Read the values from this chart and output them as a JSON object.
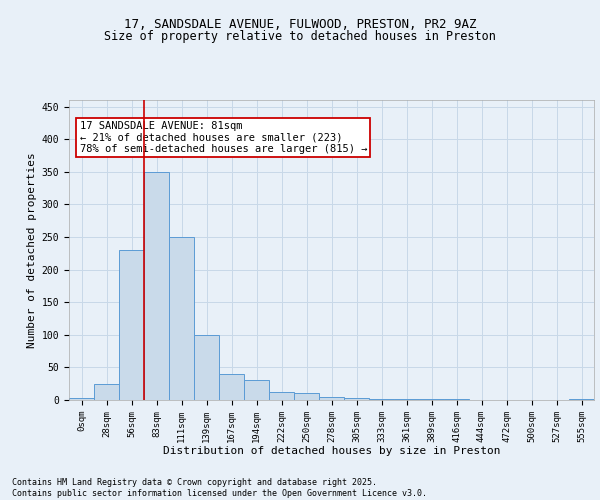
{
  "title_line1": "17, SANDSDALE AVENUE, FULWOOD, PRESTON, PR2 9AZ",
  "title_line2": "Size of property relative to detached houses in Preston",
  "xlabel": "Distribution of detached houses by size in Preston",
  "ylabel": "Number of detached properties",
  "bar_labels": [
    "0sqm",
    "28sqm",
    "56sqm",
    "83sqm",
    "111sqm",
    "139sqm",
    "167sqm",
    "194sqm",
    "222sqm",
    "250sqm",
    "278sqm",
    "305sqm",
    "333sqm",
    "361sqm",
    "389sqm",
    "416sqm",
    "444sqm",
    "472sqm",
    "500sqm",
    "527sqm",
    "555sqm"
  ],
  "bar_values": [
    3,
    25,
    230,
    350,
    250,
    100,
    40,
    30,
    12,
    10,
    5,
    3,
    2,
    1,
    1,
    1,
    0,
    0,
    0,
    0,
    2
  ],
  "bar_color": "#c9daea",
  "bar_edge_color": "#5b9bd5",
  "vline_color": "#cc0000",
  "vline_x_index": 2.5,
  "annotation_text": "17 SANDSDALE AVENUE: 81sqm\n← 21% of detached houses are smaller (223)\n78% of semi-detached houses are larger (815) →",
  "annotation_box_edgecolor": "#cc0000",
  "annotation_fontsize": 7.5,
  "ylim": [
    0,
    460
  ],
  "yticks": [
    0,
    50,
    100,
    150,
    200,
    250,
    300,
    350,
    400,
    450
  ],
  "grid_color": "#c8d8e8",
  "background_color": "#e8f0f8",
  "footer_text": "Contains HM Land Registry data © Crown copyright and database right 2025.\nContains public sector information licensed under the Open Government Licence v3.0.",
  "title_fontsize": 9,
  "subtitle_fontsize": 8.5,
  "axis_label_fontsize": 8,
  "tick_fontsize": 6.5,
  "footer_fontsize": 6
}
